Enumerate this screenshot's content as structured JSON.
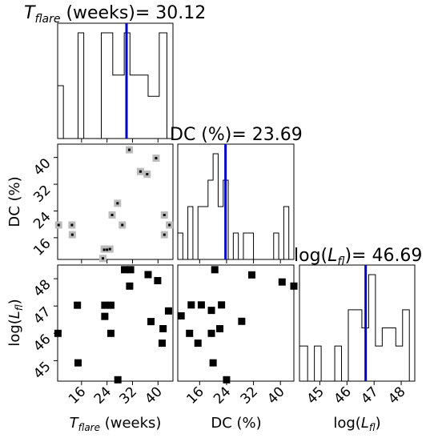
{
  "chart_data": {
    "type": "corner",
    "params": [
      {
        "key": "T",
        "title": "T_flare (weeks)= 30.12",
        "title_main": "T",
        "title_sub": "flare",
        "title_rest": " (weeks)= 30.12",
        "axis_main": "T",
        "axis_sub": "flare",
        "axis_rest": " (weeks)",
        "range": [
          8.5,
          44.7
        ],
        "ticks": [
          16,
          24,
          32,
          40
        ],
        "marker": 30.12
      },
      {
        "key": "DC",
        "title": "DC (%)= 23.69",
        "axis_label": "DC (%)",
        "range": [
          9.5,
          44.0
        ],
        "ticks": [
          16,
          24,
          32,
          40
        ],
        "marker": 23.69
      },
      {
        "key": "L",
        "title": "log(L_fl)= 46.69",
        "title_pre": "log(",
        "title_sub_main": "L",
        "title_sub": "fl",
        "title_rest": ")= 46.69",
        "axis_pre": "log(",
        "axis_main": "L",
        "axis_sub": "fl",
        "axis_rest": ")",
        "range": [
          44.25,
          48.5
        ],
        "ticks": [
          45,
          46,
          47,
          48
        ],
        "marker": 46.69
      }
    ],
    "hist_T": {
      "edges": [
        8.5,
        10.3,
        14.9,
        16.7,
        22.2,
        25.8,
        29.4,
        31.2,
        36.9,
        40.4,
        42.8,
        44.7
      ],
      "heights": [
        0.5,
        0,
        1,
        0,
        1,
        0.6,
        1,
        0.6,
        0.4,
        1,
        0
      ]
    },
    "hist_DC": {
      "edges": [
        9.5,
        11.0,
        12.5,
        14.0,
        15.5,
        17.0,
        18.5,
        20.0,
        21.5,
        23.0,
        24.5,
        26.0,
        27.5,
        29.0,
        30.5,
        32.0,
        33.5,
        35.0,
        36.5,
        38.0,
        39.5,
        41.0,
        42.5
      ],
      "heights": [
        0.25,
        0,
        0.5,
        0,
        0.5,
        0.5,
        0.75,
        1.0,
        0.5,
        0.75,
        0,
        0.25,
        0,
        0.25,
        0.25,
        0,
        0,
        0,
        0,
        0.25,
        0,
        0.5
      ]
    },
    "hist_L": {
      "edges": [
        44.25,
        44.55,
        44.8,
        45.05,
        45.3,
        45.55,
        45.8,
        46.05,
        46.55,
        46.8,
        47.05,
        47.3,
        47.55,
        47.8,
        48.05,
        48.3
      ],
      "heights": [
        0.33,
        0,
        0.33,
        0,
        0,
        0.33,
        0,
        0.67,
        0.5,
        1.0,
        0.33,
        0.5,
        0.5,
        0.33,
        0.67
      ]
    },
    "points_T_DC": [
      [
        31.0,
        42.3
      ],
      [
        39.4,
        39.8
      ],
      [
        34.5,
        35.8
      ],
      [
        36.6,
        35.0
      ],
      [
        27.3,
        26.3
      ],
      [
        25.6,
        22.8
      ],
      [
        42.0,
        22.8
      ],
      [
        28.8,
        19.8
      ],
      [
        8.8,
        19.8
      ],
      [
        13.0,
        19.8
      ],
      [
        43.6,
        19.8
      ],
      [
        13.1,
        16.9
      ],
      [
        42.0,
        16.9
      ],
      [
        24.9,
        12.6
      ],
      [
        24.0,
        12.4
      ],
      [
        23.1,
        12.4
      ],
      [
        22.7,
        9.8
      ]
    ],
    "points_T_L": [
      [
        29.5,
        48.33
      ],
      [
        31.4,
        48.33
      ],
      [
        36.9,
        48.15
      ],
      [
        39.9,
        47.93
      ],
      [
        31.1,
        47.73
      ],
      [
        14.7,
        47.03
      ],
      [
        23.3,
        47.03
      ],
      [
        25.2,
        47.03
      ],
      [
        43.3,
        46.82
      ],
      [
        23.3,
        46.62
      ],
      [
        37.8,
        46.43
      ],
      [
        41.6,
        46.17
      ],
      [
        8.6,
        46.0
      ],
      [
        25.2,
        46.0
      ],
      [
        41.3,
        45.64
      ],
      [
        14.9,
        44.92
      ],
      [
        27.4,
        44.3
      ]
    ],
    "points_DC_L": [
      [
        20.5,
        48.33
      ],
      [
        31.5,
        48.14
      ],
      [
        40.5,
        47.88
      ],
      [
        44.0,
        47.73
      ],
      [
        13.5,
        47.04
      ],
      [
        16.5,
        47.04
      ],
      [
        22.5,
        47.04
      ],
      [
        19.5,
        46.84
      ],
      [
        10.5,
        46.64
      ],
      [
        28.5,
        46.44
      ],
      [
        22.0,
        46.17
      ],
      [
        13.0,
        46.0
      ],
      [
        19.5,
        46.0
      ],
      [
        15.5,
        45.64
      ],
      [
        20.0,
        44.92
      ],
      [
        24.0,
        44.3
      ]
    ],
    "grey_T_DC": [
      [
        31.0,
        42.3
      ],
      [
        39.4,
        39.8
      ],
      [
        34.5,
        35.8
      ],
      [
        36.6,
        35.0
      ],
      [
        27.3,
        26.3
      ],
      [
        25.6,
        22.8
      ],
      [
        42.0,
        22.8
      ],
      [
        28.8,
        19.8
      ],
      [
        8.8,
        19.8
      ],
      [
        13.0,
        19.8
      ],
      [
        43.6,
        19.8
      ],
      [
        13.1,
        16.9
      ],
      [
        42.0,
        16.9
      ],
      [
        24.9,
        12.6
      ],
      [
        23.1,
        12.6
      ],
      [
        22.7,
        9.8
      ]
    ],
    "colors": {
      "marker": "#0000cc",
      "grey": "#bbbbbb",
      "points": "#000000",
      "frame": "#000000"
    }
  }
}
